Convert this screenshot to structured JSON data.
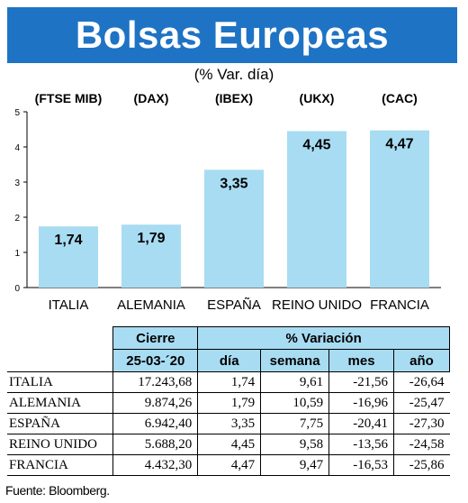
{
  "title": "Bolsas Europeas",
  "subtitle": "(% Var. día)",
  "colors": {
    "banner": "#1f73c4",
    "bar": "#a8dcf2",
    "header_fill": "#a8dcf2"
  },
  "chart_data": {
    "type": "bar",
    "categories": [
      "ITALIA",
      "ALEMANIA",
      "ESPAÑA",
      "REINO UNIDO",
      "FRANCIA"
    ],
    "indices": [
      "(FTSE MIB)",
      "(DAX)",
      "(IBEX)",
      "(UKX)",
      "(CAC)"
    ],
    "values": [
      1.74,
      1.79,
      3.35,
      4.45,
      4.47
    ],
    "value_labels": [
      "1,74",
      "1,79",
      "3,35",
      "4,45",
      "4,47"
    ],
    "yticks": [
      0,
      1,
      2,
      3,
      4,
      5
    ],
    "ylim": [
      0,
      5
    ],
    "grid": false
  },
  "table": {
    "header_top": {
      "cierre": "Cierre",
      "variacion": "% Variación"
    },
    "header_sub": {
      "date": "25-03-´20",
      "dia": "día",
      "semana": "semana",
      "mes": "mes",
      "ano": "año"
    },
    "rows": [
      {
        "country": "ITALIA",
        "cierre": "17.243,68",
        "dia": "1,74",
        "semana": "9,61",
        "mes": "-21,56",
        "ano": "-26,64"
      },
      {
        "country": "ALEMANIA",
        "cierre": "9.874,26",
        "dia": "1,79",
        "semana": "10,59",
        "mes": "-16,96",
        "ano": "-25,47"
      },
      {
        "country": "ESPAÑA",
        "cierre": "6.942,40",
        "dia": "3,35",
        "semana": "7,75",
        "mes": "-20,41",
        "ano": "-27,30"
      },
      {
        "country": "REINO UNIDO",
        "cierre": "5.688,20",
        "dia": "4,45",
        "semana": "9,58",
        "mes": "-13,56",
        "ano": "-24,58"
      },
      {
        "country": "FRANCIA",
        "cierre": "4.432,30",
        "dia": "4,47",
        "semana": "9,47",
        "mes": "-16,53",
        "ano": "-25,86"
      }
    ]
  },
  "source": "Fuente: Bloomberg."
}
